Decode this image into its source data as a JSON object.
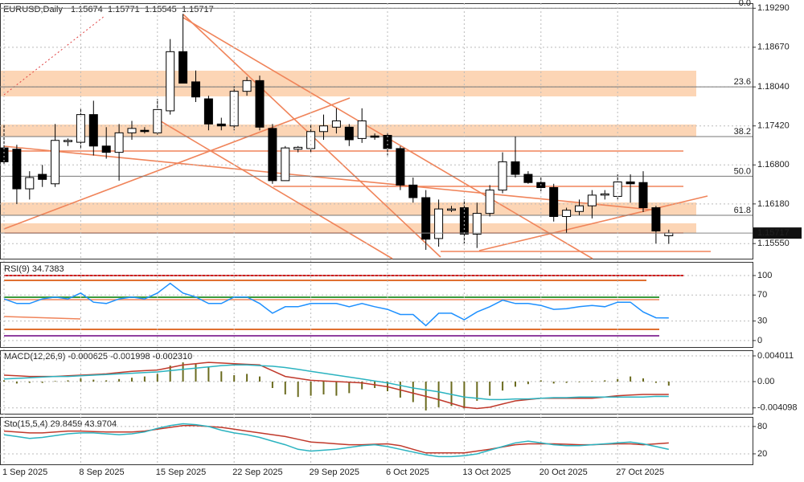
{
  "chart_data": [
    {
      "type": "candlestick",
      "title": "EURUSD,Daily",
      "categories": [
        "1 Sep 2025",
        null,
        null,
        null,
        null,
        null,
        "8 Sep 2025",
        null,
        null,
        null,
        null,
        null,
        "15 Sep 2025",
        null,
        null,
        null,
        null,
        null,
        "22 Sep 2025",
        null,
        null,
        null,
        null,
        null,
        "29 Sep 2025",
        null,
        null,
        null,
        null,
        null,
        "6 Oct 2025",
        null,
        null,
        null,
        null,
        null,
        "13 Oct 2025",
        null,
        null,
        null,
        null,
        null,
        "20 Oct 2025",
        null,
        null,
        null,
        null,
        null,
        "27 Oct 2025",
        null,
        null,
        null,
        null
      ],
      "open": [
        1.1707,
        1.1705,
        1.1642,
        1.1665,
        1.165,
        1.1717,
        1.1716,
        1.176,
        1.171,
        1.17,
        1.1731,
        1.1735,
        1.1731,
        1.1766,
        1.186,
        1.1812,
        1.1785,
        1.1745,
        1.1742,
        1.1797,
        1.1814,
        1.1738,
        1.1655,
        1.1705,
        1.1706,
        1.1733,
        1.174,
        1.174,
        1.1722,
        1.1726,
        1.1727,
        1.1706,
        1.1648,
        1.1628,
        1.1563,
        1.1608,
        1.1612,
        1.157,
        1.1603,
        1.164,
        1.1685,
        1.1665,
        1.1652,
        1.1644,
        1.1598,
        1.1606,
        1.1615,
        1.1632,
        1.163,
        1.1653,
        1.1652,
        1.1612,
        1.15674
      ],
      "high": [
        1.1745,
        1.1712,
        1.167,
        1.168,
        1.1745,
        1.1722,
        1.177,
        1.1782,
        1.174,
        1.1745,
        1.175,
        1.174,
        1.1785,
        1.188,
        1.192,
        1.183,
        1.179,
        1.1755,
        1.1805,
        1.182,
        1.1822,
        1.1745,
        1.171,
        1.171,
        1.1745,
        1.176,
        1.177,
        1.1745,
        1.177,
        1.173,
        1.173,
        1.171,
        1.166,
        1.164,
        1.1625,
        1.1615,
        1.1625,
        1.162,
        1.1648,
        1.17,
        1.1725,
        1.167,
        1.166,
        1.165,
        1.1612,
        1.1625,
        1.164,
        1.164,
        1.1665,
        1.1665,
        1.167,
        1.1615,
        1.15771
      ],
      "low": [
        1.168,
        1.1618,
        1.1625,
        1.1645,
        1.1645,
        1.171,
        1.1705,
        1.1695,
        1.169,
        1.1655,
        1.172,
        1.173,
        1.1728,
        1.176,
        1.181,
        1.178,
        1.1735,
        1.1735,
        1.1735,
        1.179,
        1.1735,
        1.165,
        1.1655,
        1.17,
        1.17,
        1.172,
        1.173,
        1.171,
        1.1715,
        1.172,
        1.1695,
        1.164,
        1.162,
        1.1545,
        1.155,
        1.1605,
        1.1555,
        1.1548,
        1.1598,
        1.1635,
        1.166,
        1.165,
        1.1638,
        1.159,
        1.1572,
        1.16,
        1.1595,
        1.1625,
        1.1625,
        1.162,
        1.1605,
        1.1555,
        1.15545
      ],
      "close": [
        1.1685,
        1.1642,
        1.166,
        1.1657,
        1.1719,
        1.1719,
        1.176,
        1.171,
        1.17,
        1.1731,
        1.1738,
        1.1733,
        1.1768,
        1.186,
        1.181,
        1.1788,
        1.1745,
        1.1742,
        1.1797,
        1.1814,
        1.174,
        1.1655,
        1.1707,
        1.1708,
        1.1733,
        1.1742,
        1.175,
        1.172,
        1.175,
        1.1724,
        1.1706,
        1.1648,
        1.1628,
        1.1562,
        1.161,
        1.161,
        1.157,
        1.1603,
        1.164,
        1.1685,
        1.1665,
        1.1652,
        1.1644,
        1.1598,
        1.1608,
        1.1615,
        1.1632,
        1.1634,
        1.1653,
        1.165,
        1.1612,
        1.1575,
        1.15717
      ],
      "up_color": "#ffffff",
      "down_color": "#000000",
      "ylim": [
        1.1531,
        1.1937
      ],
      "yticks": [
        {
          "value": 1.1929,
          "label": "1.19290"
        },
        {
          "value": 1.1867,
          "label": "1.18670"
        },
        {
          "value": 1.1804,
          "label": "1.18040"
        },
        {
          "value": 1.1742,
          "label": "1.17420"
        },
        {
          "value": 1.168,
          "label": "1.16800"
        },
        {
          "value": 1.1618,
          "label": "1.16180"
        },
        {
          "value": 1.1555,
          "label": "1.15550"
        }
      ],
      "fib_levels": [
        {
          "value": 1.1929,
          "label": "0.0"
        },
        {
          "value": 1.1804,
          "label": "23.6"
        },
        {
          "value": 1.1725,
          "label": "38.2"
        },
        {
          "value": 1.1662,
          "label": "50.0"
        },
        {
          "value": 1.16,
          "label": "61.8"
        }
      ]
    },
    {
      "type": "line",
      "title": "RSI(9) 34.7383",
      "series": [
        {
          "color": "#1e90ff",
          "values": [
            64,
            57,
            57,
            64,
            67,
            64,
            73,
            59,
            57,
            64,
            67,
            64,
            73,
            88,
            73,
            67,
            57,
            57,
            67,
            67,
            57,
            42,
            52,
            52,
            57,
            57,
            57,
            52,
            57,
            52,
            48,
            40,
            40,
            23,
            42,
            42,
            32,
            44,
            52,
            62,
            57,
            57,
            54,
            48,
            49,
            52,
            54,
            52,
            59,
            59,
            44,
            35,
            34.7383
          ]
        }
      ],
      "ylim": [
        -10,
        121
      ],
      "yticks": [
        0,
        30,
        70,
        100
      ]
    },
    {
      "type": "macd",
      "title": "MACD(12,26,9) -0.000625 -0.001998 -0.002310",
      "histogram": {
        "color": "#6b6b1f",
        "values": [
          0.0002,
          -0.0003,
          -0.0002,
          -0.0002,
          0.0001,
          0.0002,
          0.0005,
          0.0003,
          0.0002,
          0.0004,
          0.0006,
          0.0008,
          0.0012,
          0.0025,
          0.003,
          0.0028,
          0.0022,
          0.0016,
          0.001,
          0.0012,
          0.0008,
          -0.001,
          -0.002,
          -0.0024,
          -0.0022,
          -0.002,
          -0.0022,
          -0.0018,
          -0.0012,
          -0.001,
          -0.0015,
          -0.0025,
          -0.0032,
          -0.0045,
          -0.004,
          -0.0038,
          -0.0042,
          -0.003,
          -0.0022,
          -0.0014,
          -0.0008,
          -0.0004,
          0.0002,
          -0.0003,
          -0.0002,
          -0.0001,
          0.0001,
          0.0002,
          0.0004,
          0.0008,
          0.0005,
          -0.0002,
          -0.000625
        ]
      },
      "series": [
        {
          "color": "#c0392b",
          "values": [
            0.001,
            0.0009,
            0.0008,
            0.0008,
            0.0008,
            0.0009,
            0.001,
            0.0011,
            0.0012,
            0.0014,
            0.0016,
            0.0017,
            0.0018,
            0.0022,
            0.0026,
            0.0028,
            0.003,
            0.0029,
            0.0028,
            0.0027,
            0.0026,
            0.0017,
            0.0008,
            0.0005,
            0.0002,
            0.0001,
            0,
            -0.0001,
            -0.0002,
            -0.0005,
            -0.0008,
            -0.0013,
            -0.0018,
            -0.0023,
            -0.0028,
            -0.0034,
            -0.004,
            -0.0042,
            -0.004,
            -0.0035,
            -0.003,
            -0.0028,
            -0.0026,
            -0.0026,
            -0.0026,
            -0.0026,
            -0.0026,
            -0.0024,
            -0.0022,
            -0.0021,
            -0.002,
            -0.002,
            -0.001998
          ]
        },
        {
          "color": "#2bb3c0",
          "values": [
            0.0004,
            0.0005,
            0.0006,
            0.0007,
            0.0008,
            0.0008,
            0.0009,
            0.001,
            0.0011,
            0.0012,
            0.0013,
            0.0014,
            0.0015,
            0.0017,
            0.0019,
            0.0021,
            0.0023,
            0.0025,
            0.0026,
            0.0026,
            0.0025,
            0.0024,
            0.0022,
            0.0019,
            0.0016,
            0.0013,
            0.001,
            0.0007,
            0.0004,
            0.0001,
            -0.0002,
            -0.0006,
            -0.001,
            -0.0013,
            -0.0016,
            -0.002,
            -0.0024,
            -0.0026,
            -0.0028,
            -0.0028,
            -0.0027,
            -0.0027,
            -0.0026,
            -0.0025,
            -0.0025,
            -0.0024,
            -0.0024,
            -0.0024,
            -0.0024,
            -0.0024,
            -0.0024,
            -0.0023,
            -0.00231
          ]
        }
      ],
      "ylim": [
        -0.00501,
        0.004888
      ],
      "yticks": [
        0.004011,
        {
          "value": 0,
          "label": "0.00"
        },
        -0.004098
      ]
    },
    {
      "type": "line",
      "title": "Sto(15,5,4) 29.8459 43.9704",
      "series": [
        {
          "color": "#c0392b",
          "values": [
            70,
            68,
            66,
            66,
            68,
            70,
            70,
            69,
            68,
            68,
            68,
            70,
            74,
            78,
            82,
            82,
            80,
            78,
            74,
            70,
            66,
            62,
            58,
            52,
            46,
            44,
            42,
            40,
            40,
            41,
            42,
            38,
            30,
            22,
            22,
            22,
            22,
            26,
            30,
            35,
            40,
            42,
            42,
            42,
            41,
            40,
            40,
            41,
            42,
            42,
            40,
            42,
            43.9704
          ]
        },
        {
          "color": "#2bb3c0",
          "values": [
            62,
            58,
            54,
            56,
            60,
            64,
            66,
            66,
            64,
            62,
            64,
            68,
            76,
            82,
            86,
            84,
            80,
            72,
            66,
            62,
            56,
            48,
            40,
            30,
            26,
            28,
            30,
            34,
            38,
            40,
            36,
            30,
            24,
            18,
            14,
            14,
            16,
            20,
            28,
            36,
            44,
            48,
            44,
            40,
            38,
            38,
            40,
            42,
            44,
            46,
            42,
            36,
            29.8459
          ]
        }
      ],
      "ylim": [
        -3,
        101
      ],
      "yticks": [
        20,
        80
      ]
    }
  ]
}
